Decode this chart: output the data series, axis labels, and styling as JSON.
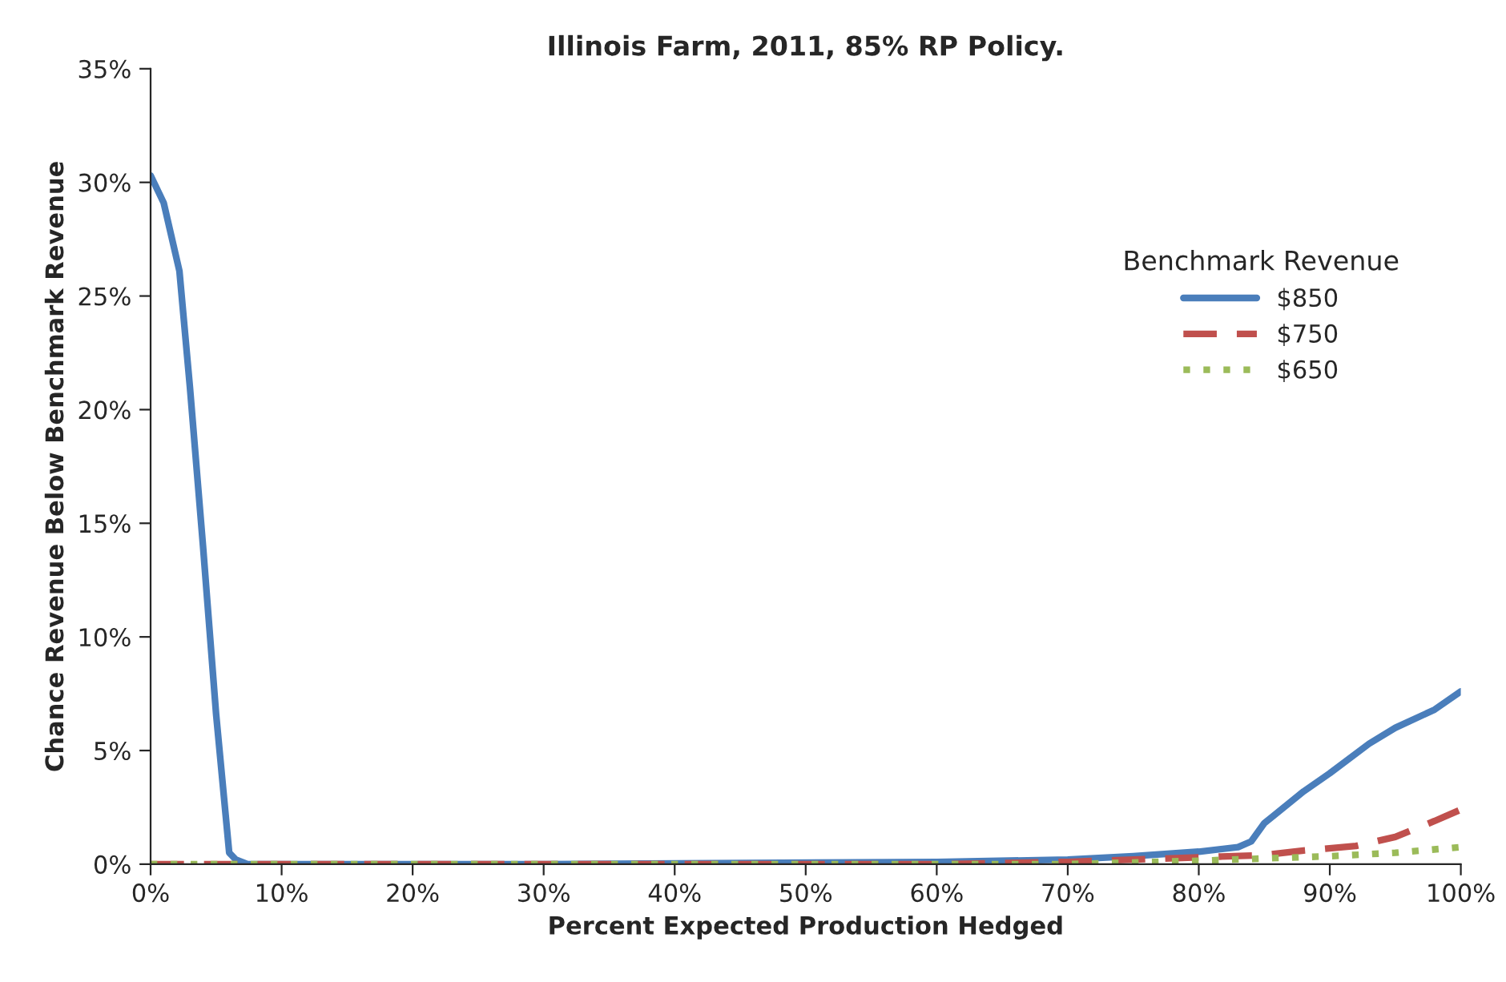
{
  "chart_data": {
    "type": "line",
    "title": "Illinois Farm, 2011, 85% RP Policy.",
    "xlabel": "Percent Expected Production Hedged",
    "ylabel": "Chance Revenue Below Benchmark Revenue",
    "legend_title": "Benchmark Revenue",
    "legend": "top right",
    "grid": false,
    "xlim": [
      0,
      100
    ],
    "xticks": [
      {
        "value": 0,
        "label": "0%"
      },
      {
        "value": 10,
        "label": "10%"
      },
      {
        "value": 20,
        "label": "20%"
      },
      {
        "value": 30,
        "label": "30%"
      },
      {
        "value": 40,
        "label": "40%"
      },
      {
        "value": 50,
        "label": "50%"
      },
      {
        "value": 60,
        "label": "60%"
      },
      {
        "value": 70,
        "label": "70%"
      },
      {
        "value": 80,
        "label": "80%"
      },
      {
        "value": 90,
        "label": "90%"
      },
      {
        "value": 100,
        "label": "100%"
      }
    ],
    "ylim": [
      0,
      35
    ],
    "yticks": [
      {
        "value": 0,
        "label": "0%"
      },
      {
        "value": 5,
        "label": "5%"
      },
      {
        "value": 10,
        "label": "10%"
      },
      {
        "value": 15,
        "label": "15%"
      },
      {
        "value": 20,
        "label": "20%"
      },
      {
        "value": 25,
        "label": "25%"
      },
      {
        "value": 30,
        "label": "30%"
      },
      {
        "value": 35,
        "label": "35%"
      }
    ],
    "series": [
      {
        "name": "$850",
        "color": "#4a7ebb",
        "line_style": "solid",
        "x": [
          0,
          1,
          2.2,
          3,
          4,
          5,
          6,
          6.5,
          7.4,
          30,
          60,
          70,
          75,
          80,
          83,
          84,
          85,
          88,
          90,
          93,
          95,
          98,
          100
        ],
        "values": [
          30.3,
          29.1,
          26.1,
          21,
          14,
          6.6,
          0.5,
          0.2,
          0,
          0,
          0.1,
          0.2,
          0.35,
          0.55,
          0.75,
          1.0,
          1.8,
          3.2,
          4.0,
          5.3,
          6.0,
          6.8,
          7.6
        ]
      },
      {
        "name": "$750",
        "color": "#c0504d",
        "line_style": "dashed",
        "x": [
          0,
          30,
          60,
          70,
          80,
          85,
          88,
          92,
          95,
          98,
          100
        ],
        "values": [
          0,
          0,
          0,
          0.1,
          0.3,
          0.4,
          0.6,
          0.8,
          1.2,
          1.9,
          2.4
        ]
      },
      {
        "name": "$650",
        "color": "#9bbb59",
        "line_style": "dotted",
        "x": [
          0,
          30,
          70,
          80,
          90,
          95,
          100
        ],
        "values": [
          0,
          0,
          0,
          0.15,
          0.35,
          0.5,
          0.75
        ]
      }
    ]
  }
}
